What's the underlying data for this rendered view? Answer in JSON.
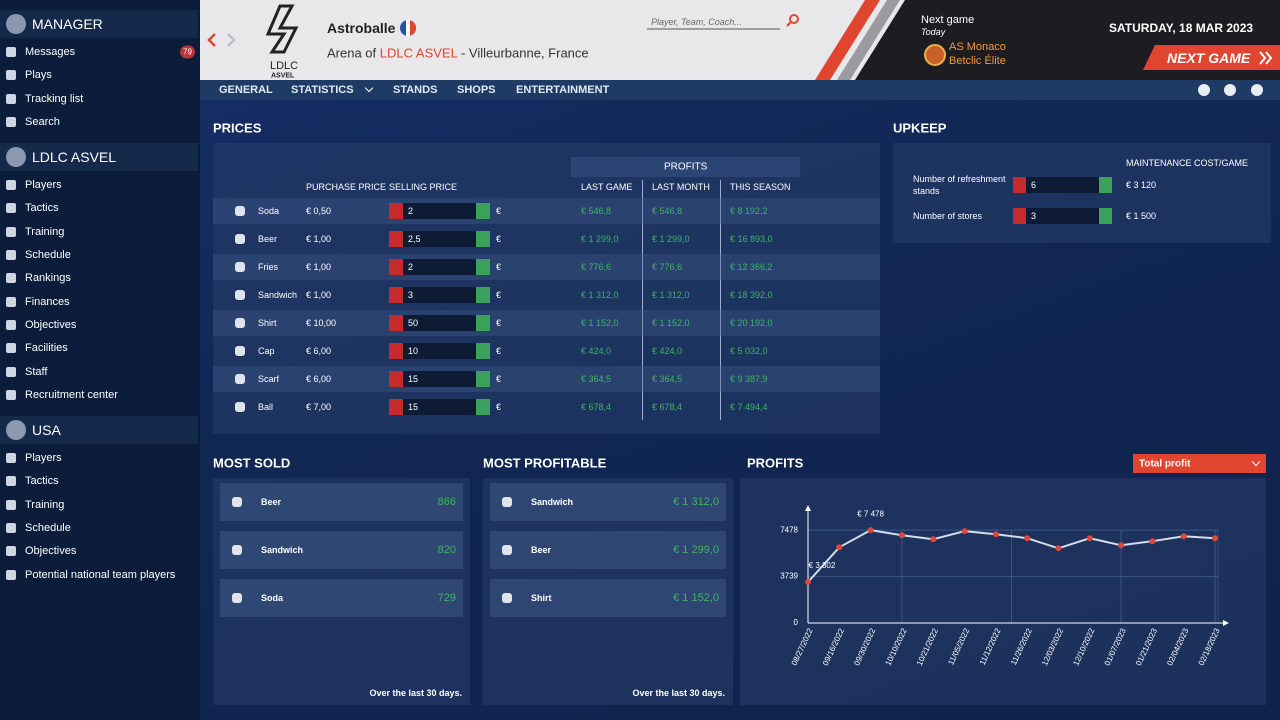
{
  "sidebar": {
    "sections": [
      {
        "title": "MANAGER",
        "items": [
          {
            "label": "Messages",
            "badge": "79"
          },
          {
            "label": "Plays"
          },
          {
            "label": "Tracking list"
          },
          {
            "label": "Search"
          }
        ]
      },
      {
        "title": "LDLC ASVEL",
        "items": [
          {
            "label": "Players"
          },
          {
            "label": "Tactics"
          },
          {
            "label": "Training"
          },
          {
            "label": "Schedule"
          },
          {
            "label": "Rankings"
          },
          {
            "label": "Finances"
          },
          {
            "label": "Objectives"
          },
          {
            "label": "Facilities"
          },
          {
            "label": "Staff"
          },
          {
            "label": "Recruitment center"
          }
        ]
      },
      {
        "title": "USA",
        "items": [
          {
            "label": "Players"
          },
          {
            "label": "Tactics"
          },
          {
            "label": "Training"
          },
          {
            "label": "Schedule"
          },
          {
            "label": "Objectives"
          },
          {
            "label": "Potential national team players"
          }
        ]
      }
    ]
  },
  "header": {
    "logo_top": "LDLC",
    "logo_bottom": "ASVEL",
    "arena": "Astroballe",
    "subtitle_prefix": "Arena of",
    "club": "LDLC ASVEL",
    "location": "- Villeurbanne, France",
    "search_placeholder": "Player, Team, Coach...",
    "next_game_label": "Next game",
    "next_game_when": "Today",
    "opponent": "AS Monaco",
    "competition": "Betclic Élite",
    "date": "SATURDAY, 18 MAR 2023",
    "next_game_button": "NEXT GAME"
  },
  "tabs": [
    "GENERAL",
    "STATISTICS",
    "STANDS",
    "SHOPS",
    "ENTERTAINMENT"
  ],
  "prices": {
    "title": "PRICES",
    "columns": {
      "purchase": "PURCHASE PRICE",
      "selling": "SELLING PRICE",
      "profits": "PROFITS",
      "last_game": "LAST GAME",
      "last_month": "LAST MONTH",
      "this_season": "THIS SEASON"
    },
    "currency": "€",
    "rows": [
      [
        "Soda",
        "€ 0,50",
        "2",
        "€ 546,8",
        "€ 546,8",
        "€ 8 192,2"
      ],
      [
        "Beer",
        "€ 1,00",
        "2,5",
        "€ 1 299,0",
        "€ 1 299,0",
        "€ 16 893,0"
      ],
      [
        "Fries",
        "€ 1,00",
        "2",
        "€ 776,6",
        "€ 776,6",
        "€ 12 366,2"
      ],
      [
        "Sandwich",
        "€ 1,00",
        "3",
        "€ 1 312,0",
        "€ 1 312,0",
        "€ 18 392,0"
      ],
      [
        "Shirt",
        "€ 10,00",
        "50",
        "€ 1 152,0",
        "€ 1 152,0",
        "€ 20 192,0"
      ],
      [
        "Cap",
        "€ 6,00",
        "10",
        "€ 424,0",
        "€ 424,0",
        "€ 5 032,0"
      ],
      [
        "Scarf",
        "€ 6,00",
        "15",
        "€ 364,5",
        "€ 364,5",
        "€ 9 387,9"
      ],
      [
        "Ball",
        "€ 7,00",
        "15",
        "€ 678,4",
        "€ 678,4",
        "€ 7 494,4"
      ]
    ]
  },
  "upkeep": {
    "title": "UPKEEP",
    "cost_header": "MAINTENANCE COST/GAME",
    "rows": [
      [
        "Number of refreshment stands",
        "6",
        "€ 3 120"
      ],
      [
        "Number of stores",
        "3",
        "€ 1 500"
      ]
    ]
  },
  "most_sold": {
    "title": "MOST SOLD",
    "rows": [
      [
        "Beer",
        "866"
      ],
      [
        "Sandwich",
        "820"
      ],
      [
        "Soda",
        "729"
      ]
    ],
    "footer": "Over the last 30 days."
  },
  "most_profitable": {
    "title": "MOST PROFITABLE",
    "rows": [
      [
        "Sandwich",
        "€ 1 312,0"
      ],
      [
        "Beer",
        "€ 1 299,0"
      ],
      [
        "Shirt",
        "€ 1 152,0"
      ]
    ],
    "footer": "Over the last 30 days."
  },
  "profits": {
    "title": "PROFITS",
    "selector": "Total profit"
  },
  "chart_data": {
    "type": "line",
    "x": [
      "08/27/2022",
      "09/16/2022",
      "09/30/2022",
      "10/10/2022",
      "10/21/2022",
      "11/05/2022",
      "11/12/2022",
      "11/26/2022",
      "12/03/2022",
      "12/10/2022",
      "01/07/2023",
      "01/21/2023",
      "02/04/2023",
      "02/18/2023"
    ],
    "values": [
      3302,
      6100,
      7478,
      7070,
      6750,
      7400,
      7150,
      6830,
      6020,
      6830,
      6260,
      6590,
      6990,
      6830
    ],
    "value_labels": [
      "€ 3 302",
      null,
      "€ 7 478",
      null,
      null,
      null,
      null,
      null,
      null,
      null,
      null,
      null,
      null,
      null
    ],
    "color": "#d5dcea",
    "marker_color": "#e0463a",
    "ylim": [
      0,
      8700
    ],
    "yticks": [
      0,
      3739,
      7478
    ],
    "grid": true
  }
}
